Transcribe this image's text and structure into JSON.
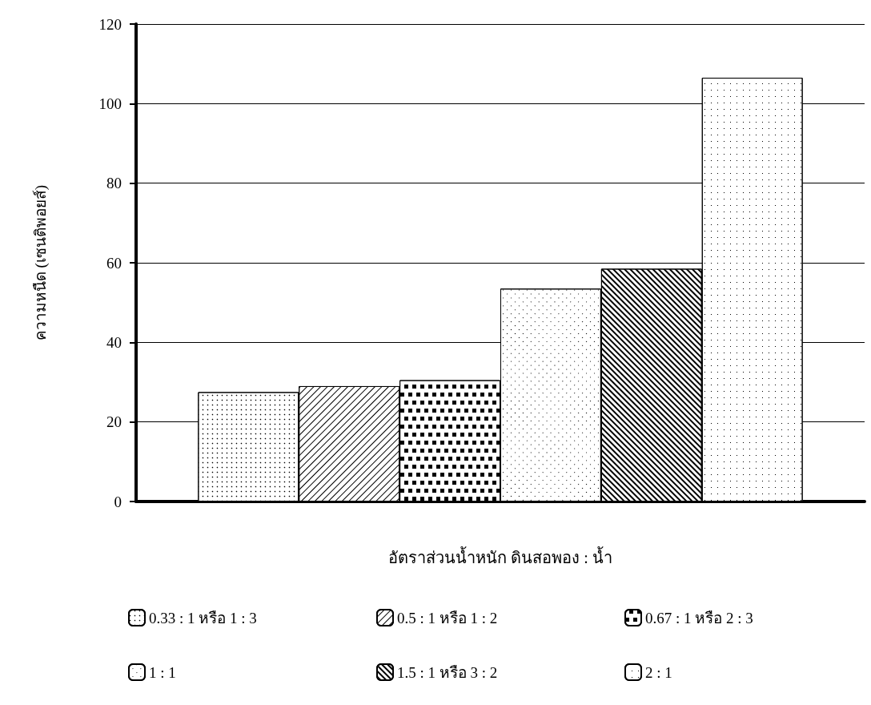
{
  "chart_data": {
    "type": "bar",
    "xlabel": "อัตราส่วนน้ำหนัก ดินสอพอง : น้ำ",
    "ylabel": "ความหนืด (เซนติพอยส์)",
    "categories": [
      null
    ],
    "series": [
      {
        "name": "0.33 : 1 หรือ 1 : 3",
        "color": "#ffffff",
        "values": [
          27.5
        ]
      },
      {
        "name": "0.5 : 1 หรือ 1 : 2",
        "color": "#ffffff",
        "values": [
          29
        ]
      },
      {
        "name": "0.67 : 1 หรือ 2 : 3",
        "color": "#ffffff",
        "values": [
          30.5
        ]
      },
      {
        "name": "1 : 1",
        "color": "#ffffff",
        "values": [
          53.5
        ]
      },
      {
        "name": "1.5 : 1 หรือ 3 : 2",
        "color": "#ffffff",
        "values": [
          58.5
        ]
      },
      {
        "name": "2 : 1",
        "color": "#ffffff",
        "values": [
          106.5
        ]
      }
    ],
    "ylim": [
      0,
      120
    ],
    "yticks": [
      0,
      20,
      40,
      60,
      80,
      100,
      120
    ],
    "grid": "y",
    "legend": "bottom"
  }
}
